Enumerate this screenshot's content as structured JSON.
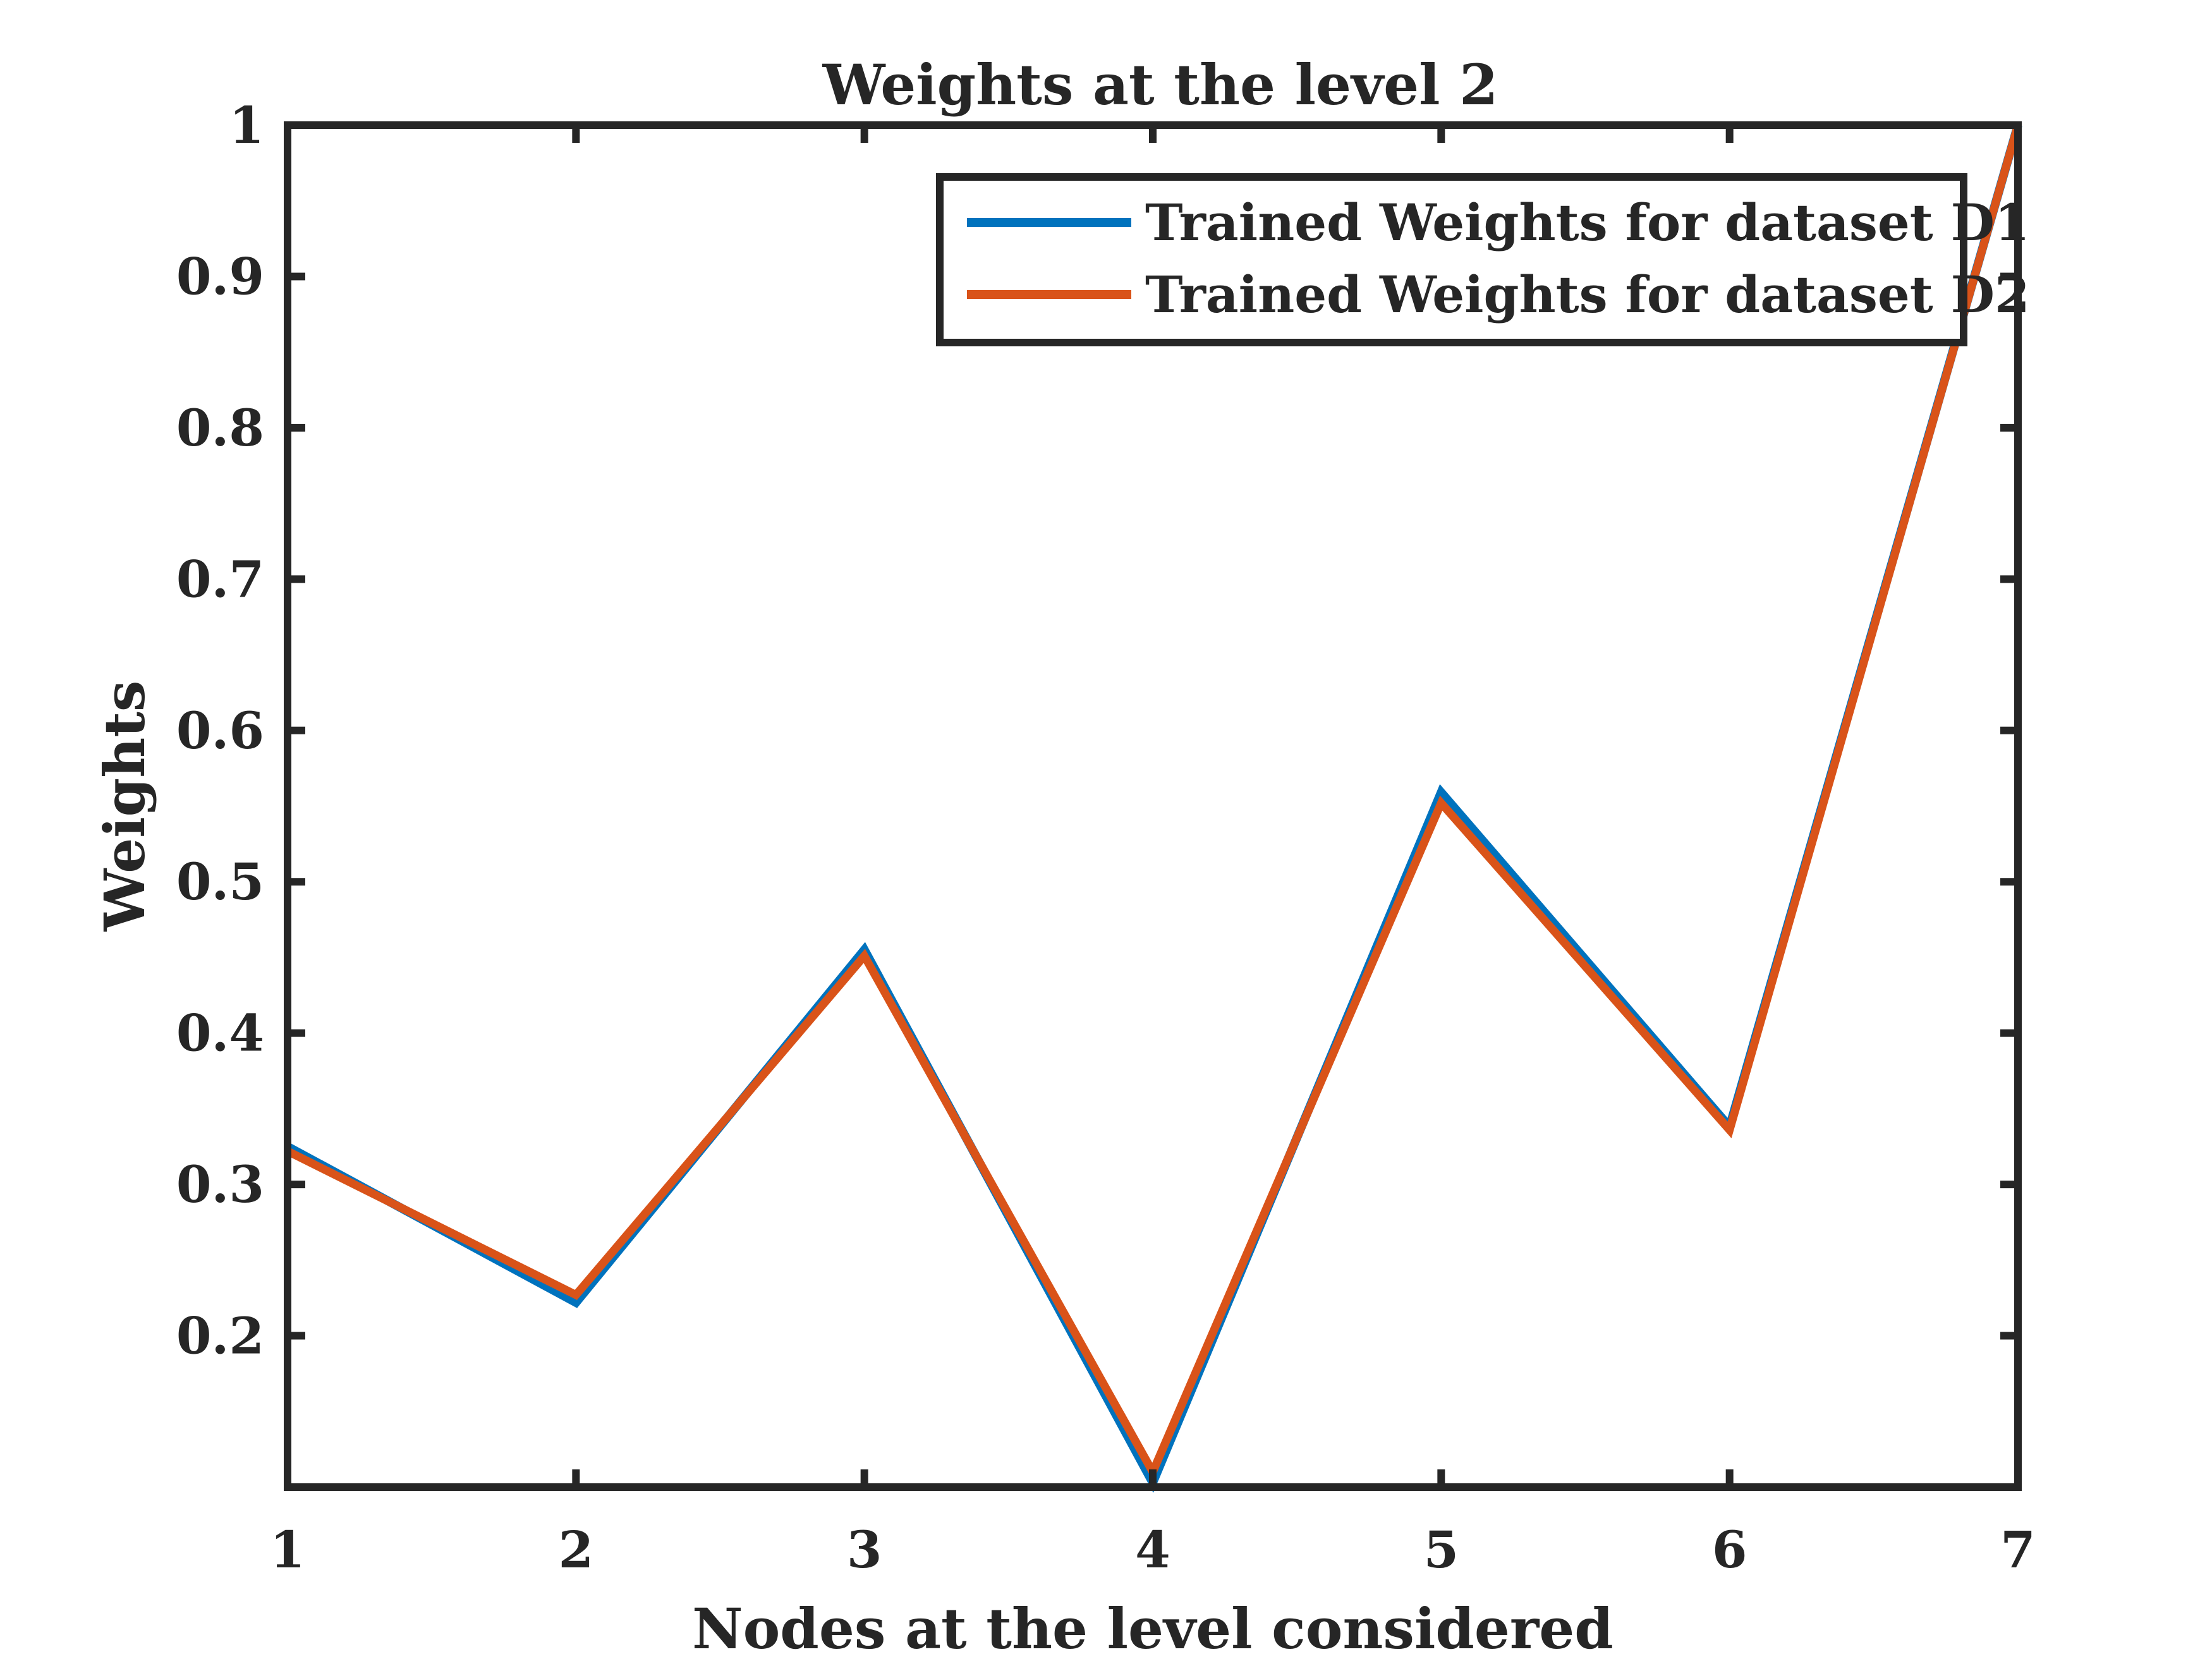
{
  "chart_data": {
    "type": "line",
    "title": "Weights at the level 2",
    "xlabel": "Nodes at the level considered",
    "ylabel": "Weights",
    "xlim": [
      1,
      7
    ],
    "ylim": [
      0.1,
      1
    ],
    "xticks": [
      "1",
      "2",
      "3",
      "4",
      "5",
      "6",
      "7"
    ],
    "yticks": [
      "0.2",
      "0.3",
      "0.4",
      "0.5",
      "0.6",
      "0.7",
      "0.8",
      "0.9",
      "1"
    ],
    "grid": false,
    "legend_position": "top-right",
    "x": [
      1,
      2,
      3,
      4,
      5,
      6,
      7
    ],
    "series": [
      {
        "name": "Trained Weights for dataset D1",
        "color": "#0072BD",
        "values": [
          0.325,
          0.222,
          0.455,
          0.103,
          0.559,
          0.338,
          1.0
        ]
      },
      {
        "name": "Trained Weights for dataset D2",
        "color": "#D95319",
        "values": [
          0.322,
          0.227,
          0.451,
          0.11,
          0.552,
          0.336,
          1.0
        ]
      }
    ]
  }
}
